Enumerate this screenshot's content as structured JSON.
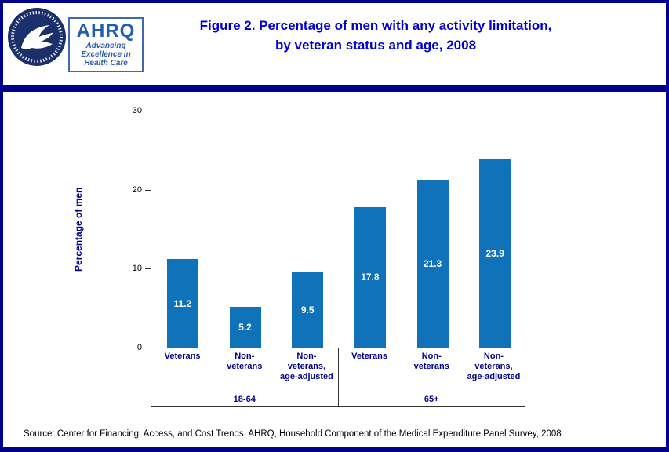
{
  "page": {
    "border_color": "#00008b",
    "background": "#ffffff"
  },
  "header": {
    "title_line1": "Figure 2. Percentage of men with any activity limitation,",
    "title_line2": "by veteran status and age, 2008",
    "title_color": "#0000cc",
    "ahrq_logo": {
      "acronym": "AHRQ",
      "tagline_line1": "Advancing",
      "tagline_line2": "Excellence in",
      "tagline_line3": "Health Care"
    },
    "hhs_seal": "hhs-seal-icon"
  },
  "chart_data": {
    "type": "bar",
    "title": "Figure 2. Percentage of men with any activity limitation, by veteran status and age, 2008",
    "ylabel": "Percentage of men",
    "ylim": [
      0,
      30
    ],
    "yticks": [
      0,
      10,
      20,
      30
    ],
    "grid": false,
    "legend": "none",
    "bar_color": "#1072b8",
    "value_label_color": "#ffffff",
    "groups": [
      {
        "label": "18-64",
        "categories": [
          "Veterans",
          "Non-\nveterans",
          "Non-\nveterans,\nage-adjusted"
        ],
        "values": [
          11.2,
          5.2,
          9.5
        ]
      },
      {
        "label": "65+",
        "categories": [
          "Veterans",
          "Non-\nveterans",
          "Non-\nveterans,\nage-adjusted"
        ],
        "values": [
          17.8,
          21.3,
          23.9
        ]
      }
    ]
  },
  "footer": {
    "source": "Source: Center for Financing, Access, and Cost Trends, AHRQ, Household Component of the Medical Expenditure Panel Survey, 2008"
  }
}
